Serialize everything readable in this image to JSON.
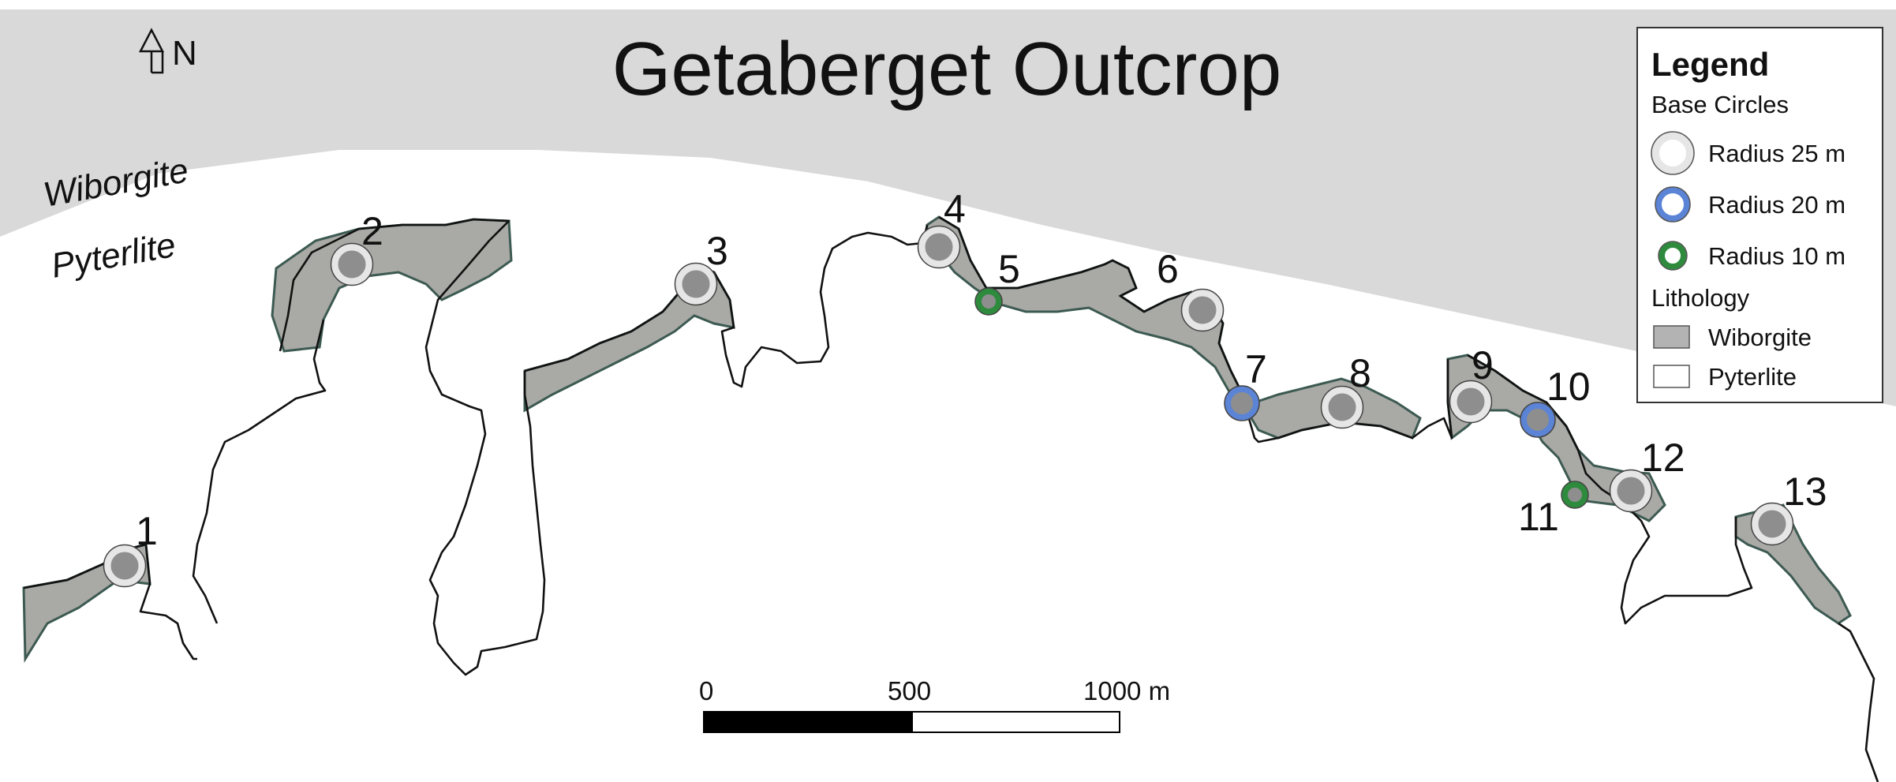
{
  "title": "Getaberget Outcrop",
  "north_arrow": {
    "label": "N"
  },
  "lithology_labels": {
    "upper": "Wiborgite",
    "lower": "Pyterlite"
  },
  "sites": [
    {
      "id": "1",
      "radius_m": 25
    },
    {
      "id": "2",
      "radius_m": 25
    },
    {
      "id": "3",
      "radius_m": 25
    },
    {
      "id": "4",
      "radius_m": 25
    },
    {
      "id": "5",
      "radius_m": 10
    },
    {
      "id": "6",
      "radius_m": 25
    },
    {
      "id": "7",
      "radius_m": 20
    },
    {
      "id": "8",
      "radius_m": 25
    },
    {
      "id": "9",
      "radius_m": 25
    },
    {
      "id": "10",
      "radius_m": 20
    },
    {
      "id": "11",
      "radius_m": 10
    },
    {
      "id": "12",
      "radius_m": 25
    },
    {
      "id": "13",
      "radius_m": 25
    }
  ],
  "scale_bar": {
    "labels": [
      "0",
      "500",
      "1000 m"
    ]
  },
  "legend": {
    "title": "Legend",
    "base_circles_heading": "Base Circles",
    "base_circles": [
      {
        "label": "Radius 25 m",
        "ring_color": "#e6e6e6"
      },
      {
        "label": "Radius 20 m",
        "ring_color": "#5b84d6"
      },
      {
        "label": "Radius 10 m",
        "ring_color": "#2e8b3e"
      }
    ],
    "lithology_heading": "Lithology",
    "lithology": [
      {
        "label": "Wiborgite",
        "color": "#b3b3b3"
      },
      {
        "label": "Pyterlite",
        "color": "#ffffff"
      }
    ]
  },
  "colors": {
    "wiborgite_area": "#d9d9d9",
    "outcrop_fill": "#a9a9a5",
    "circle_inner": "#8e8e8e"
  }
}
